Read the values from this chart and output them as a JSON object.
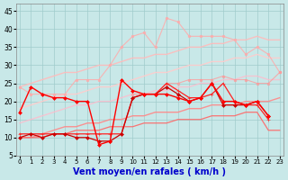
{
  "x": [
    0,
    1,
    2,
    3,
    4,
    5,
    6,
    7,
    8,
    9,
    10,
    11,
    12,
    13,
    14,
    15,
    16,
    17,
    18,
    19,
    20,
    21,
    22,
    23
  ],
  "series": [
    {
      "y": [
        24,
        25,
        26,
        27,
        28,
        28,
        29,
        30,
        30,
        31,
        32,
        32,
        33,
        33,
        34,
        35,
        35,
        36,
        36,
        37,
        37,
        38,
        37,
        37
      ],
      "color": "#ffbbbb",
      "marker": null,
      "markersize": 0,
      "linewidth": 1.0,
      "alpha": 0.9,
      "zorder": 1
    },
    {
      "y": [
        18,
        19,
        20,
        21,
        22,
        22,
        23,
        24,
        24,
        25,
        26,
        27,
        28,
        28,
        29,
        30,
        30,
        31,
        31,
        32,
        32,
        33,
        32,
        32
      ],
      "color": "#ffcccc",
      "marker": null,
      "markersize": 0,
      "linewidth": 1.0,
      "alpha": 0.9,
      "zorder": 1
    },
    {
      "y": [
        24,
        22,
        22,
        22,
        22,
        26,
        26,
        26,
        30,
        35,
        38,
        39,
        35,
        43,
        42,
        38,
        38,
        38,
        38,
        37,
        33,
        35,
        33,
        28
      ],
      "color": "#ffaaaa",
      "marker": "o",
      "markersize": 2.0,
      "linewidth": 0.8,
      "alpha": 0.85,
      "zorder": 2
    },
    {
      "y": [
        14,
        15,
        16,
        17,
        18,
        19,
        19,
        20,
        20,
        21,
        22,
        22,
        23,
        23,
        24,
        24,
        25,
        25,
        26,
        26,
        27,
        27,
        26,
        26
      ],
      "color": "#ffbbcc",
      "marker": null,
      "markersize": 0,
      "linewidth": 1.0,
      "alpha": 0.8,
      "zorder": 1
    },
    {
      "y": [
        null,
        null,
        null,
        null,
        null,
        null,
        null,
        null,
        null,
        null,
        22,
        22,
        22,
        25,
        25,
        26,
        26,
        26,
        27,
        26,
        26,
        25,
        25,
        28
      ],
      "color": "#ff9999",
      "marker": "o",
      "markersize": 2.0,
      "linewidth": 0.8,
      "alpha": 0.75,
      "zorder": 2
    },
    {
      "y": [
        10,
        10,
        11,
        12,
        13,
        13,
        14,
        14,
        15,
        15,
        16,
        16,
        17,
        17,
        17,
        18,
        18,
        19,
        19,
        19,
        20,
        20,
        20,
        21
      ],
      "color": "#ff8888",
      "marker": null,
      "markersize": 0,
      "linewidth": 1.0,
      "alpha": 0.9,
      "zorder": 1
    },
    {
      "y": [
        10,
        10,
        10,
        11,
        11,
        12,
        12,
        12,
        13,
        13,
        13,
        14,
        14,
        14,
        15,
        15,
        15,
        16,
        16,
        16,
        17,
        17,
        12,
        12
      ],
      "color": "#ff6666",
      "marker": null,
      "markersize": 0,
      "linewidth": 0.9,
      "alpha": 0.9,
      "zorder": 1
    },
    {
      "y": [
        11,
        11,
        11,
        11,
        11,
        11,
        11,
        11,
        11,
        11,
        21,
        22,
        22,
        25,
        23,
        21,
        21,
        22,
        25,
        20,
        19,
        19,
        15,
        null
      ],
      "color": "#ff2222",
      "marker": "+",
      "markersize": 3.5,
      "linewidth": 0.9,
      "alpha": 1.0,
      "zorder": 3
    },
    {
      "y": [
        10,
        11,
        10,
        11,
        11,
        10,
        10,
        9,
        9,
        11,
        21,
        22,
        22,
        24,
        22,
        20,
        21,
        25,
        19,
        19,
        19,
        20,
        16,
        null
      ],
      "color": "#cc0000",
      "marker": "D",
      "markersize": 2.0,
      "linewidth": 0.9,
      "alpha": 1.0,
      "zorder": 3
    },
    {
      "y": [
        17,
        24,
        22,
        21,
        21,
        20,
        20,
        8,
        9,
        26,
        23,
        22,
        22,
        22,
        21,
        20,
        21,
        25,
        20,
        20,
        19,
        20,
        16,
        null
      ],
      "color": "#ff0000",
      "marker": "D",
      "markersize": 2.0,
      "linewidth": 1.0,
      "alpha": 1.0,
      "zorder": 4
    }
  ],
  "xlim": [
    -0.3,
    23.3
  ],
  "ylim": [
    5,
    47
  ],
  "yticks": [
    5,
    10,
    15,
    20,
    25,
    30,
    35,
    40,
    45
  ],
  "xticks": [
    0,
    1,
    2,
    3,
    4,
    5,
    6,
    7,
    8,
    9,
    10,
    11,
    12,
    13,
    14,
    15,
    16,
    17,
    18,
    19,
    20,
    21,
    22,
    23
  ],
  "xlabel": "Vent moyen/en rafales ( km/h )",
  "background_color": "#c8e8e8",
  "grid_color": "#a0cccc",
  "xlabel_color": "#0000cc",
  "xlabel_fontsize": 7.0,
  "tick_fontsize_x": 5.0,
  "tick_fontsize_y": 5.5
}
